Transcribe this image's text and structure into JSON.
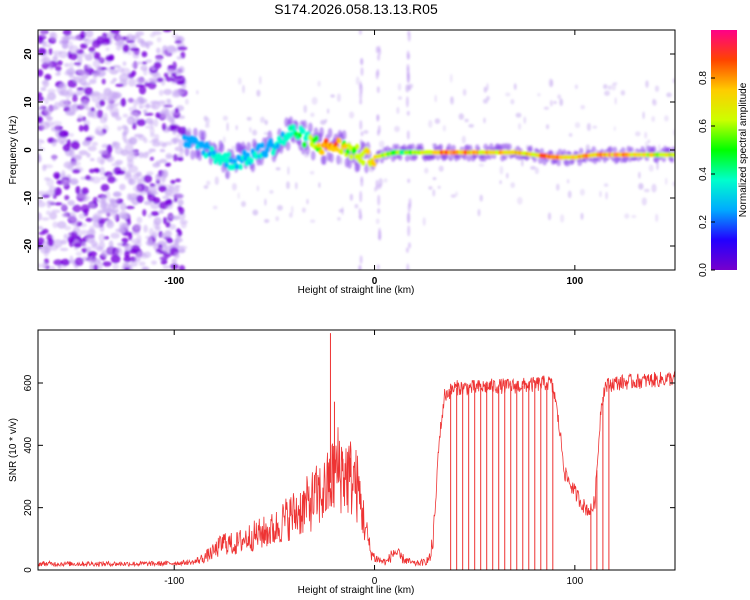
{
  "title": "S174.2026.058.13.13.R05",
  "colors": {
    "line": "#ee3333",
    "frame": "#000000",
    "colorbar": [
      "#7700cc",
      "#2200ff",
      "#00aaff",
      "#00ffcc",
      "#00ff00",
      "#ccff00",
      "#ffcc00",
      "#ff4400",
      "#ff0088"
    ]
  },
  "chart_data": [
    {
      "type": "heatmap",
      "xlabel": "Height of straight line (km)",
      "ylabel": "Frequency (Hz)",
      "xlim": [
        -168,
        150
      ],
      "ylim": [
        -25,
        25
      ],
      "xticks": [
        -100,
        0,
        100
      ],
      "xtick_labels": [
        "-100",
        "0",
        "100"
      ],
      "yticks": [
        -20,
        -10,
        0,
        10,
        20
      ],
      "ytick_labels": [
        "-20",
        "-10",
        "0",
        "10",
        "20"
      ],
      "colorbar": {
        "label": "Normalized spectral amplitude",
        "range": [
          0,
          1
        ],
        "ticks": [
          0.0,
          0.2,
          0.4,
          0.6,
          0.8
        ],
        "tick_labels": [
          "0.0",
          "0.2",
          "0.4",
          "0.6",
          "0.8"
        ]
      },
      "ridge": {
        "x": [
          -95,
          -90,
          -85,
          -80,
          -75,
          -70,
          -65,
          -60,
          -55,
          -50,
          -45,
          -40,
          -35,
          -30,
          -25,
          -20,
          -15,
          -10,
          -5,
          0,
          5,
          10,
          20,
          30,
          40,
          50,
          60,
          70,
          80,
          90,
          100,
          110,
          120,
          130,
          140,
          150
        ],
        "frequency": [
          1.5,
          1.0,
          0.5,
          -1.0,
          -2.0,
          -2.5,
          -2.0,
          -1.0,
          0.0,
          1.0,
          2.5,
          4.0,
          2.5,
          1.5,
          0.5,
          1.0,
          0.5,
          -0.5,
          -1.5,
          -1.5,
          -1.0,
          -0.5,
          -0.5,
          -0.5,
          -0.5,
          -0.5,
          -0.5,
          -0.5,
          -1.0,
          -1.5,
          -1.5,
          -1.0,
          -1.0,
          -1.0,
          -1.0,
          -1.0
        ],
        "amplitude": [
          0.25,
          0.3,
          0.3,
          0.35,
          0.35,
          0.35,
          0.3,
          0.35,
          0.3,
          0.35,
          0.4,
          0.45,
          0.5,
          0.6,
          0.8,
          0.85,
          0.7,
          0.6,
          0.7,
          0.8,
          0.6,
          0.55,
          0.6,
          0.8,
          0.9,
          0.85,
          0.85,
          0.8,
          0.8,
          0.95,
          0.75,
          0.85,
          0.9,
          0.75,
          0.7,
          0.65
        ]
      }
    },
    {
      "type": "line",
      "xlabel": "Height of straight line (km)",
      "ylabel": "SNR (10 * v/v)",
      "xlim": [
        -168,
        150
      ],
      "ylim": [
        0,
        770
      ],
      "xticks": [
        -100,
        0,
        100
      ],
      "xtick_labels": [
        "-100",
        "0",
        "100"
      ],
      "yticks": [
        0,
        200,
        400,
        600
      ],
      "ytick_labels": [
        "0",
        "200",
        "400",
        "600"
      ],
      "series": [
        {
          "x": [
            -168,
            -150,
            -130,
            -110,
            -100,
            -90,
            -85,
            -80,
            -75,
            -70,
            -65,
            -60,
            -55,
            -50,
            -45,
            -40,
            -35,
            -30,
            -25,
            -22,
            -20,
            -18,
            -15,
            -10,
            -8,
            -5,
            -2,
            0,
            3,
            6,
            10,
            13,
            16,
            20,
            25,
            28,
            30,
            32,
            35,
            40,
            50,
            60,
            70,
            80,
            85,
            88,
            90,
            93,
            95,
            100,
            105,
            108,
            110,
            113,
            115,
            120,
            130,
            140,
            150
          ],
          "y": [
            20,
            20,
            20,
            20,
            22,
            25,
            40,
            60,
            90,
            80,
            100,
            110,
            120,
            130,
            160,
            180,
            200,
            230,
            250,
            280,
            310,
            330,
            310,
            290,
            250,
            150,
            60,
            40,
            30,
            25,
            60,
            40,
            30,
            20,
            25,
            40,
            150,
            400,
            560,
            585,
            585,
            590,
            590,
            595,
            600,
            600,
            560,
            420,
            310,
            250,
            200,
            190,
            220,
            520,
            590,
            600,
            605,
            610,
            615
          ]
        }
      ],
      "spikes": [
        {
          "x": -22,
          "y": 760
        },
        {
          "x": -20,
          "y": 540
        },
        {
          "x": -16,
          "y": 380
        },
        {
          "x": -12,
          "y": 360
        }
      ],
      "dropouts": [
        38,
        41,
        44,
        47,
        50,
        53,
        56,
        59,
        62,
        65,
        68,
        71,
        74,
        77,
        80,
        83,
        86,
        89,
        108,
        111,
        114,
        117
      ]
    }
  ]
}
